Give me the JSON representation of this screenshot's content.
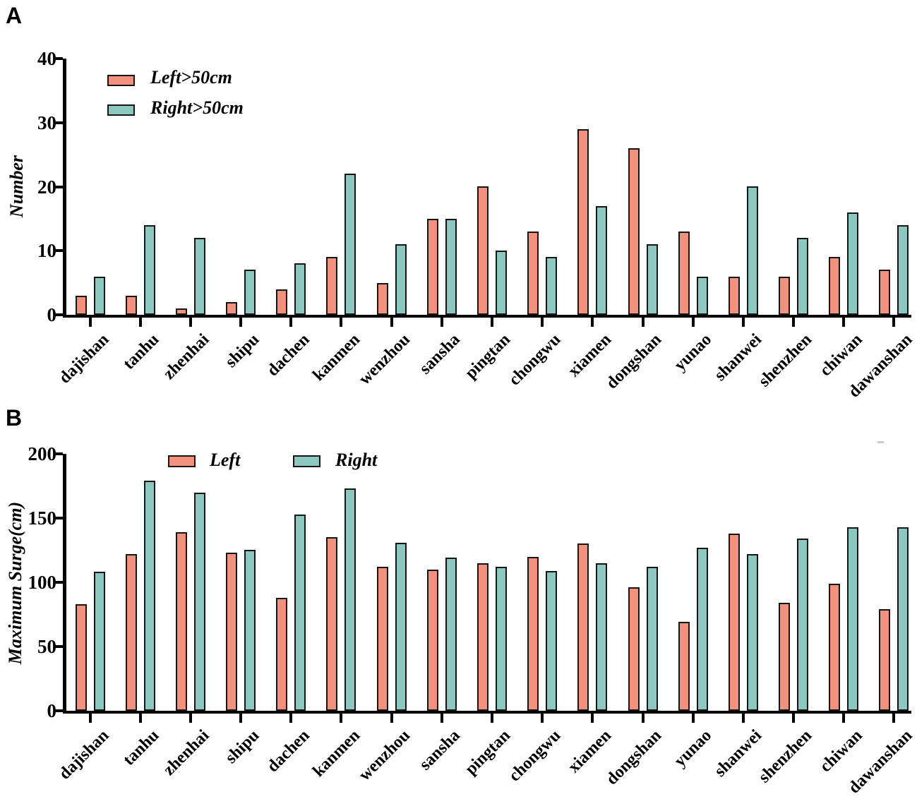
{
  "chart_data": [
    {
      "type": "bar",
      "panel_label": "A",
      "title": "",
      "xlabel": "",
      "ylabel": "Number",
      "ylim": [
        0,
        40
      ],
      "yticks": [
        0,
        10,
        20,
        30,
        40
      ],
      "grid": false,
      "legend_position": "top-left-inside-vertical",
      "categories": [
        "dajishan",
        "tanhu",
        "zhenhai",
        "shipu",
        "dachen",
        "kanmen",
        "wenzhou",
        "sansha",
        "pingtan",
        "chongwu",
        "xiamen",
        "dongshan",
        "yunao",
        "shanwei",
        "shenzhen",
        "chiwan",
        "dawanshan"
      ],
      "series": [
        {
          "name": "Left>50cm",
          "color_key": "left",
          "values": [
            3,
            3,
            1,
            2,
            4,
            9,
            5,
            15,
            20,
            13,
            29,
            26,
            13,
            6,
            6,
            9,
            7
          ]
        },
        {
          "name": "Right>50cm",
          "color_key": "right",
          "values": [
            6,
            14,
            12,
            7,
            8,
            22,
            11,
            15,
            10,
            9,
            17,
            11,
            6,
            20,
            12,
            16,
            14
          ]
        }
      ]
    },
    {
      "type": "bar",
      "panel_label": "B",
      "title": "",
      "xlabel": "",
      "ylabel": "Maximum Surge(cm)",
      "ylim": [
        0,
        200
      ],
      "yticks": [
        0,
        50,
        100,
        150,
        200
      ],
      "grid": false,
      "legend_position": "top-inside-horizontal",
      "categories": [
        "dajishan",
        "tanhu",
        "zhenhai",
        "shipu",
        "dachen",
        "kanmen",
        "wenzhou",
        "sansha",
        "pingtan",
        "chongwu",
        "xiamen",
        "dongshan",
        "yunao",
        "shanwei",
        "shenzhen",
        "chiwan",
        "dawanshan"
      ],
      "series": [
        {
          "name": "Left",
          "color_key": "left",
          "values": [
            83,
            122,
            139,
            123,
            88,
            135,
            112,
            110,
            115,
            120,
            130,
            96,
            69,
            138,
            84,
            99,
            79
          ]
        },
        {
          "name": "Right",
          "color_key": "right",
          "values": [
            108,
            179,
            170,
            125,
            153,
            173,
            131,
            119,
            112,
            109,
            115,
            112,
            127,
            122,
            134,
            143,
            143
          ]
        }
      ]
    }
  ],
  "colors": {
    "left": "#F2917E",
    "right": "#8DC8C0",
    "outline": "#161616",
    "axis": "#000000"
  }
}
